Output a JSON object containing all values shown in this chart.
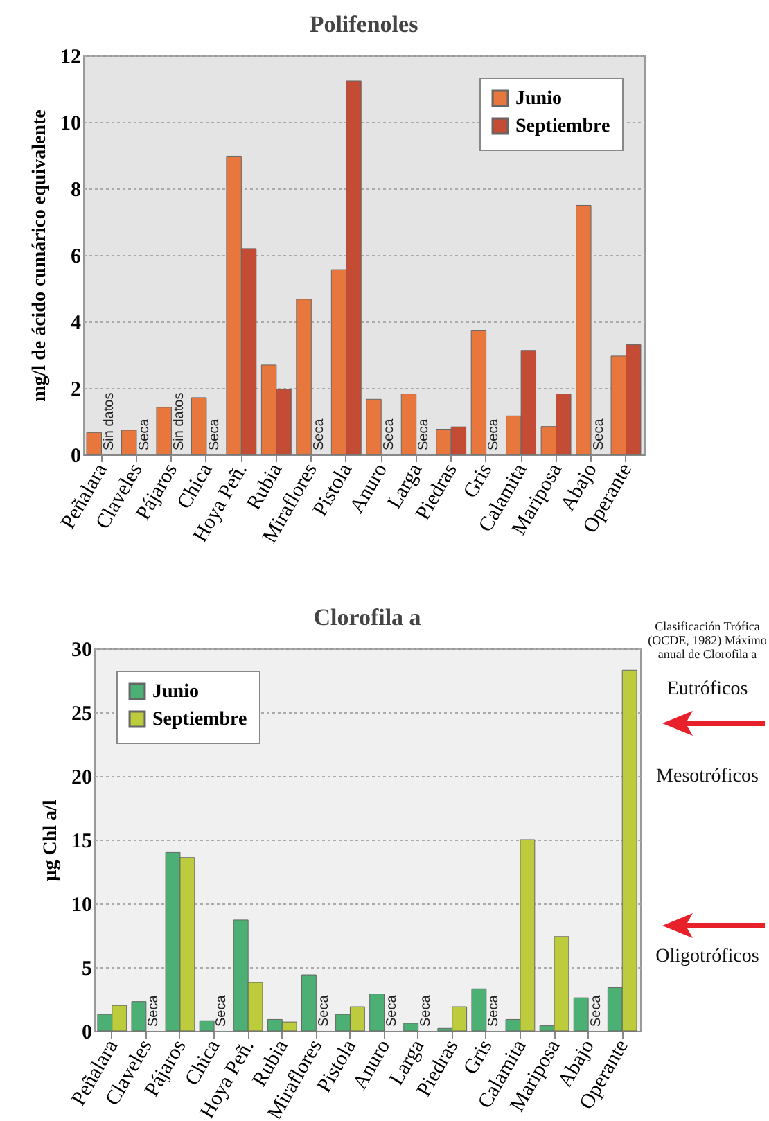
{
  "chart_data": [
    {
      "type": "bar",
      "title": "Polifenoles",
      "ylabel": "mg/l de ácido cumárico equivalente",
      "categories": [
        "Peñalara",
        "Claveles",
        "Pájaros",
        "Chica",
        "Hoya Peñ.",
        "Rubia",
        "Miraflores",
        "Pistola",
        "Anuro",
        "Larga",
        "Piedras",
        "Gris",
        "Calamita",
        "Mariposa",
        "Abajo",
        "Operante"
      ],
      "series": [
        {
          "name": "Junio",
          "color": "#e8773d",
          "values": [
            0.66,
            0.73,
            1.42,
            1.71,
            8.97,
            2.69,
            4.67,
            5.56,
            1.66,
            1.82,
            0.76,
            3.72,
            1.16,
            0.84,
            7.49,
            2.96
          ]
        },
        {
          "name": "Septiembre",
          "color": "#c44b34",
          "values": [
            null,
            null,
            null,
            null,
            6.19,
            1.96,
            null,
            11.23,
            null,
            null,
            0.83,
            null,
            3.13,
            1.82,
            null,
            3.3
          ]
        }
      ],
      "ylim": [
        0,
        12
      ],
      "yticks": [
        0,
        2,
        4,
        6,
        8,
        10,
        12
      ],
      "grid": "y",
      "legend": "top right",
      "annotations": [
        {
          "text": "Sin datos",
          "x": "Peñalara",
          "y": 0
        },
        {
          "text": "Seca",
          "x": "Claveles",
          "y": 0
        },
        {
          "text": "Sin datos",
          "x": "Pájaros",
          "y": 0
        },
        {
          "text": "Seca",
          "x": "Chica",
          "y": 0
        },
        {
          "text": "Seca",
          "x": "Miraflores",
          "y": 0
        },
        {
          "text": "Seca",
          "x": "Anuro",
          "y": 0
        },
        {
          "text": "Seca",
          "x": "Larga",
          "y": 0
        },
        {
          "text": "Seca",
          "x": "Gris",
          "y": 0
        },
        {
          "text": "Seca",
          "x": "Abajo",
          "y": 0
        }
      ]
    },
    {
      "type": "bar",
      "title": "Clorofila a",
      "ylabel": "µg Chl a/l",
      "categories": [
        "Peñalara",
        "Claveles",
        "Pájaros",
        "Chica",
        "Hoya Peñ.",
        "Rubia",
        "Miraflores",
        "Pistola",
        "Anuro",
        "Larga",
        "Piedras",
        "Gris",
        "Calamita",
        "Mariposa",
        "Abajo",
        "Operante"
      ],
      "series": [
        {
          "name": "Junio",
          "color": "#4caf74",
          "values": [
            1.3,
            2.3,
            14.0,
            0.8,
            8.7,
            0.9,
            4.4,
            1.3,
            2.9,
            0.6,
            0.2,
            3.3,
            0.9,
            0.4,
            2.6,
            3.4
          ]
        },
        {
          "name": "Septiembre",
          "color": "#bccc3c",
          "values": [
            2.0,
            null,
            13.6,
            null,
            3.8,
            0.7,
            null,
            1.9,
            null,
            null,
            1.9,
            null,
            15.0,
            7.4,
            null,
            28.3
          ]
        }
      ],
      "ylim": [
        0,
        30
      ],
      "yticks": [
        0,
        5,
        10,
        15,
        20,
        25,
        30
      ],
      "grid": "y",
      "legend": "top left",
      "annotations": [
        {
          "text": "Seca",
          "x": "Claveles",
          "y": 0
        },
        {
          "text": "Seca",
          "x": "Chica",
          "y": 0
        },
        {
          "text": "Seca",
          "x": "Miraflores",
          "y": 0
        },
        {
          "text": "Seca",
          "x": "Anuro",
          "y": 0
        },
        {
          "text": "Seca",
          "x": "Larga",
          "y": 0
        },
        {
          "text": "Seca",
          "x": "Gris",
          "y": 0
        },
        {
          "text": "Seca",
          "x": "Abajo",
          "y": 0
        },
        "Clasificación Trófica (OCDE, 1982) Máximo anual de Clorofila a",
        "Eutróficos",
        "Mesotróficos",
        "Oligotróficos"
      ]
    }
  ]
}
